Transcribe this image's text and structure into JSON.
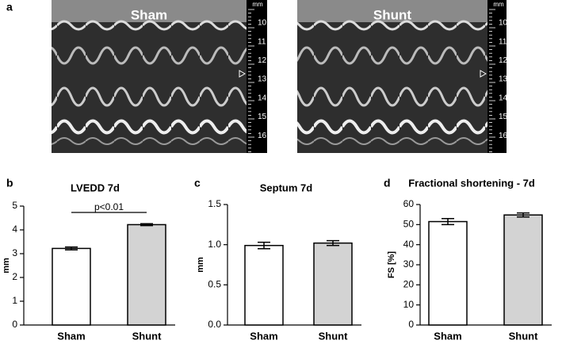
{
  "figure": {
    "panel_a": "a",
    "mmode": {
      "unit": "mm",
      "images": [
        {
          "title": "Sham",
          "depth_labels": [
            10,
            11,
            12,
            13,
            14,
            15,
            16
          ]
        },
        {
          "title": "Shunt",
          "depth_labels": [
            10,
            11,
            12,
            13,
            14,
            15,
            16
          ]
        }
      ]
    }
  },
  "chart_data": [
    {
      "type": "bar",
      "panel": "b",
      "title": "LVEDD 7d",
      "y_label": "mm",
      "categories": [
        "Sham",
        "Shunt"
      ],
      "values": [
        3.22,
        4.22
      ],
      "errors": [
        0.06,
        0.04
      ],
      "colors": [
        "#ffffff",
        "#d3d3d3"
      ],
      "ylim": [
        0,
        5
      ],
      "yticks": [
        0,
        1,
        2,
        3,
        4,
        5
      ],
      "annotation": "p<0.01"
    },
    {
      "type": "bar",
      "panel": "c",
      "title": "Septum 7d",
      "y_label": "mm",
      "categories": [
        "Sham",
        "Shunt"
      ],
      "values": [
        0.99,
        1.02
      ],
      "errors": [
        0.04,
        0.03
      ],
      "colors": [
        "#ffffff",
        "#d3d3d3"
      ],
      "ylim": [
        0,
        1.5
      ],
      "yticks": [
        {
          "value": 0,
          "label": "0.0"
        },
        0.5,
        {
          "value": 1,
          "label": "1.0"
        },
        1.5
      ]
    },
    {
      "type": "bar",
      "panel": "d",
      "title": "Fractional shortening -  7d",
      "y_label": "FS [%]",
      "categories": [
        "Sham",
        "Shunt"
      ],
      "values": [
        51.5,
        54.8
      ],
      "errors": [
        1.5,
        1.0
      ],
      "colors": [
        "#ffffff",
        "#d3d3d3"
      ],
      "ylim": [
        0,
        60
      ],
      "yticks": [
        0,
        10,
        20,
        30,
        40,
        50,
        60
      ]
    }
  ]
}
